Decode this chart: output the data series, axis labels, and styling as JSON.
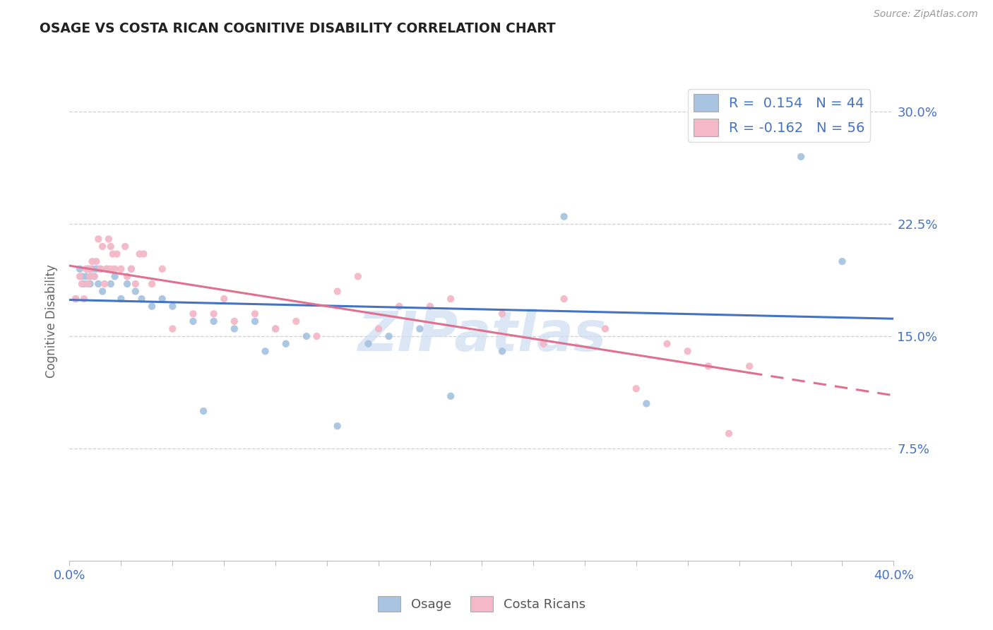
{
  "title": "OSAGE VS COSTA RICAN COGNITIVE DISABILITY CORRELATION CHART",
  "source_text": "Source: ZipAtlas.com",
  "ylabel": "Cognitive Disability",
  "xlim": [
    0.0,
    0.4
  ],
  "ylim": [
    0.0,
    0.32
  ],
  "ytick_positions": [
    0.075,
    0.15,
    0.225,
    0.3
  ],
  "ytick_labels": [
    "7.5%",
    "15.0%",
    "22.5%",
    "30.0%"
  ],
  "osage_color": "#a8c4e0",
  "costa_rican_color": "#f4b8c8",
  "osage_line_color": "#4472c4",
  "costa_rican_line_color": "#e07090",
  "grid_color": "#d0d0d0",
  "background_color": "#ffffff",
  "title_color": "#222222",
  "axis_label_color": "#666666",
  "tick_label_color": "#4472c4",
  "watermark_text": "ZIPatlas",
  "watermark_color": "#ccddf0",
  "osage_N": 44,
  "costa_rican_N": 56,
  "osage_R": 0.154,
  "costa_rican_R": -0.162,
  "osage_x": [
    0.003,
    0.005,
    0.006,
    0.007,
    0.008,
    0.009,
    0.01,
    0.01,
    0.011,
    0.012,
    0.013,
    0.014,
    0.015,
    0.016,
    0.018,
    0.02,
    0.022,
    0.025,
    0.028,
    0.03,
    0.032,
    0.035,
    0.04,
    0.045,
    0.05,
    0.06,
    0.065,
    0.07,
    0.08,
    0.09,
    0.095,
    0.1,
    0.105,
    0.115,
    0.13,
    0.145,
    0.155,
    0.17,
    0.185,
    0.21,
    0.24,
    0.28,
    0.355,
    0.375
  ],
  "osage_y": [
    0.175,
    0.195,
    0.19,
    0.185,
    0.19,
    0.195,
    0.19,
    0.185,
    0.195,
    0.19,
    0.195,
    0.185,
    0.195,
    0.18,
    0.195,
    0.185,
    0.19,
    0.175,
    0.185,
    0.195,
    0.18,
    0.175,
    0.17,
    0.175,
    0.17,
    0.16,
    0.1,
    0.16,
    0.155,
    0.16,
    0.14,
    0.155,
    0.145,
    0.15,
    0.09,
    0.145,
    0.15,
    0.155,
    0.11,
    0.14,
    0.23,
    0.105,
    0.27,
    0.2
  ],
  "costa_rican_x": [
    0.003,
    0.005,
    0.006,
    0.007,
    0.008,
    0.009,
    0.01,
    0.01,
    0.011,
    0.012,
    0.013,
    0.014,
    0.015,
    0.016,
    0.017,
    0.018,
    0.019,
    0.02,
    0.02,
    0.021,
    0.022,
    0.023,
    0.025,
    0.027,
    0.028,
    0.03,
    0.032,
    0.034,
    0.036,
    0.04,
    0.045,
    0.05,
    0.06,
    0.07,
    0.075,
    0.08,
    0.09,
    0.1,
    0.11,
    0.12,
    0.13,
    0.14,
    0.15,
    0.16,
    0.175,
    0.185,
    0.21,
    0.23,
    0.24,
    0.26,
    0.275,
    0.29,
    0.3,
    0.31,
    0.32,
    0.33
  ],
  "costa_rican_y": [
    0.175,
    0.19,
    0.185,
    0.175,
    0.195,
    0.185,
    0.195,
    0.19,
    0.2,
    0.19,
    0.2,
    0.215,
    0.195,
    0.21,
    0.185,
    0.195,
    0.215,
    0.21,
    0.195,
    0.205,
    0.195,
    0.205,
    0.195,
    0.21,
    0.19,
    0.195,
    0.185,
    0.205,
    0.205,
    0.185,
    0.195,
    0.155,
    0.165,
    0.165,
    0.175,
    0.16,
    0.165,
    0.155,
    0.16,
    0.15,
    0.18,
    0.19,
    0.155,
    0.17,
    0.17,
    0.175,
    0.165,
    0.145,
    0.175,
    0.155,
    0.115,
    0.145,
    0.14,
    0.13,
    0.085,
    0.13
  ]
}
